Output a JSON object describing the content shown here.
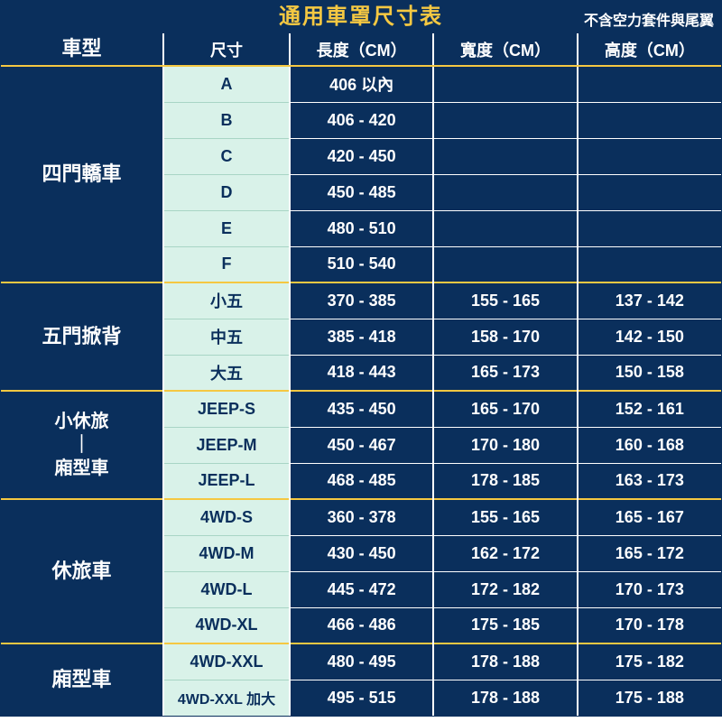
{
  "title": "通用車罩尺寸表",
  "subtitle": "不含空力套件與尾翼",
  "headers": {
    "type": "車型",
    "size": "尺寸",
    "length": "長度（CM）",
    "width": "寬度（CM）",
    "height": "高度（CM）"
  },
  "colors": {
    "bg_dark": "#0a2f5c",
    "bg_light": "#d9f2e9",
    "accent": "#f5c842",
    "text_light": "#ffffff",
    "text_dark": "#0a2f5c",
    "light_divider": "#a8d5c5"
  },
  "groups": [
    {
      "type": "四門轎車",
      "rows": [
        {
          "size": "A",
          "length": "406 以內",
          "width": "",
          "height": ""
        },
        {
          "size": "B",
          "length": "406 - 420",
          "width": "",
          "height": ""
        },
        {
          "size": "C",
          "length": "420 - 450",
          "width": "",
          "height": ""
        },
        {
          "size": "D",
          "length": "450 - 485",
          "width": "",
          "height": ""
        },
        {
          "size": "E",
          "length": "480 - 510",
          "width": "",
          "height": ""
        },
        {
          "size": "F",
          "length": "510 - 540",
          "width": "",
          "height": ""
        }
      ]
    },
    {
      "type": "五門掀背",
      "rows": [
        {
          "size": "小五",
          "length": "370 - 385",
          "width": "155 - 165",
          "height": "137 - 142"
        },
        {
          "size": "中五",
          "length": "385 - 418",
          "width": "158 - 170",
          "height": "142 - 150"
        },
        {
          "size": "大五",
          "length": "418 - 443",
          "width": "165 - 173",
          "height": "150 - 158"
        }
      ]
    },
    {
      "type": "小休旅\n｜\n廂型車",
      "multiline": true,
      "rows": [
        {
          "size": "JEEP-S",
          "length": "435 - 450",
          "width": "165 - 170",
          "height": "152 - 161"
        },
        {
          "size": "JEEP-M",
          "length": "450 - 467",
          "width": "170 - 180",
          "height": "160 - 168"
        },
        {
          "size": "JEEP-L",
          "length": "468 - 485",
          "width": "178 - 185",
          "height": "163 - 173"
        }
      ]
    },
    {
      "type": "休旅車",
      "rows": [
        {
          "size": "4WD-S",
          "length": "360 - 378",
          "width": "155 - 165",
          "height": "165 - 167"
        },
        {
          "size": "4WD-M",
          "length": "430 - 450",
          "width": "162 - 172",
          "height": "165 - 172"
        },
        {
          "size": "4WD-L",
          "length": "445 - 472",
          "width": "172 - 182",
          "height": "170 - 173"
        },
        {
          "size": "4WD-XL",
          "length": "466 - 486",
          "width": "175 - 185",
          "height": "170 - 178"
        }
      ]
    },
    {
      "type": "廂型車",
      "rows": [
        {
          "size": "4WD-XXL",
          "length": "480 - 495",
          "width": "178 - 188",
          "height": "175 - 182"
        },
        {
          "size": "4WD-XXL 加大",
          "small": true,
          "length": "495 - 515",
          "width": "178 - 188",
          "height": "175 - 188"
        }
      ]
    }
  ]
}
